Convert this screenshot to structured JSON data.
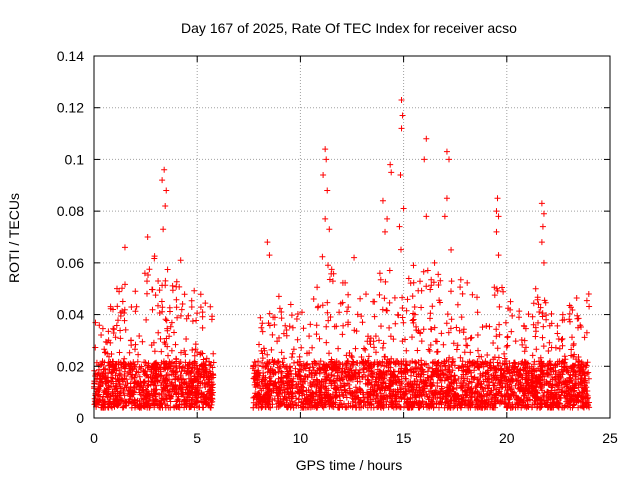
{
  "chart_data": {
    "type": "scatter",
    "title": "Day 167 of 2025, Rate Of TEC Index for receiver acso",
    "xlabel": "GPS time / hours",
    "ylabel": "ROTI / TECUs",
    "xlim": [
      0,
      25
    ],
    "ylim": [
      0,
      0.14
    ],
    "xticks": [
      0,
      5,
      10,
      15,
      20,
      25
    ],
    "yticks": [
      0,
      0.02,
      0.04,
      0.06,
      0.08,
      0.1,
      0.12,
      0.14
    ],
    "xtick_labels": [
      "0",
      "5",
      "10",
      "15",
      "20",
      "25"
    ],
    "ytick_labels": [
      "0",
      "0.02",
      "0.04",
      "0.06",
      "0.08",
      "0.1",
      "0.12",
      "0.14"
    ],
    "grid": true,
    "marker": "+",
    "color": "#ff0000",
    "data_gap_hours": [
      5.8,
      7.7
    ],
    "highlight_points": [
      {
        "x": 3.4,
        "y": 0.096
      },
      {
        "x": 3.3,
        "y": 0.092
      },
      {
        "x": 3.5,
        "y": 0.088
      },
      {
        "x": 3.45,
        "y": 0.082
      },
      {
        "x": 3.35,
        "y": 0.073
      },
      {
        "x": 2.6,
        "y": 0.07
      },
      {
        "x": 1.5,
        "y": 0.066
      },
      {
        "x": 4.2,
        "y": 0.061
      },
      {
        "x": 8.4,
        "y": 0.068
      },
      {
        "x": 8.5,
        "y": 0.063
      },
      {
        "x": 11.2,
        "y": 0.104
      },
      {
        "x": 11.25,
        "y": 0.1
      },
      {
        "x": 11.1,
        "y": 0.094
      },
      {
        "x": 11.3,
        "y": 0.088
      },
      {
        "x": 11.2,
        "y": 0.077
      },
      {
        "x": 11.4,
        "y": 0.073
      },
      {
        "x": 12.6,
        "y": 0.062
      },
      {
        "x": 14.0,
        "y": 0.084
      },
      {
        "x": 14.2,
        "y": 0.077
      },
      {
        "x": 14.1,
        "y": 0.072
      },
      {
        "x": 14.4,
        "y": 0.095
      },
      {
        "x": 14.35,
        "y": 0.098
      },
      {
        "x": 14.9,
        "y": 0.123
      },
      {
        "x": 14.95,
        "y": 0.117
      },
      {
        "x": 14.9,
        "y": 0.112
      },
      {
        "x": 14.85,
        "y": 0.094
      },
      {
        "x": 15.0,
        "y": 0.081
      },
      {
        "x": 14.8,
        "y": 0.074
      },
      {
        "x": 16.1,
        "y": 0.108
      },
      {
        "x": 16.0,
        "y": 0.1
      },
      {
        "x": 16.1,
        "y": 0.078
      },
      {
        "x": 16.5,
        "y": 0.06
      },
      {
        "x": 17.1,
        "y": 0.103
      },
      {
        "x": 17.2,
        "y": 0.1
      },
      {
        "x": 17.1,
        "y": 0.085
      },
      {
        "x": 17.0,
        "y": 0.078
      },
      {
        "x": 17.3,
        "y": 0.065
      },
      {
        "x": 19.5,
        "y": 0.08
      },
      {
        "x": 19.6,
        "y": 0.078
      },
      {
        "x": 19.55,
        "y": 0.085
      },
      {
        "x": 19.5,
        "y": 0.072
      },
      {
        "x": 19.6,
        "y": 0.063
      },
      {
        "x": 21.7,
        "y": 0.083
      },
      {
        "x": 21.8,
        "y": 0.079
      },
      {
        "x": 21.75,
        "y": 0.074
      },
      {
        "x": 21.7,
        "y": 0.068
      },
      {
        "x": 21.8,
        "y": 0.06
      },
      {
        "x": 21.4,
        "y": 0.05
      }
    ],
    "density_profile": {
      "description_x_hours": [
        0,
        0.5,
        1,
        1.5,
        2,
        2.5,
        3,
        3.5,
        4,
        4.5,
        5,
        5.5,
        5.8,
        7.7,
        8,
        8.5,
        9,
        9.5,
        10,
        10.5,
        11,
        11.5,
        12,
        12.5,
        13,
        13.5,
        14,
        14.5,
        15,
        15.5,
        16,
        16.5,
        17,
        17.5,
        18,
        18.5,
        19,
        19.5,
        20,
        20.5,
        21,
        21.5,
        22,
        22.5,
        23,
        23.5,
        24
      ],
      "upper_envelope": [
        0.035,
        0.04,
        0.045,
        0.05,
        0.05,
        0.055,
        0.06,
        0.055,
        0.05,
        0.05,
        0.045,
        0.045,
        0.045,
        0.025,
        0.035,
        0.04,
        0.045,
        0.04,
        0.04,
        0.045,
        0.06,
        0.055,
        0.05,
        0.045,
        0.045,
        0.05,
        0.06,
        0.065,
        0.06,
        0.055,
        0.055,
        0.06,
        0.055,
        0.05,
        0.05,
        0.045,
        0.045,
        0.05,
        0.045,
        0.04,
        0.04,
        0.045,
        0.04,
        0.04,
        0.04,
        0.045,
        0.045
      ]
    }
  }
}
